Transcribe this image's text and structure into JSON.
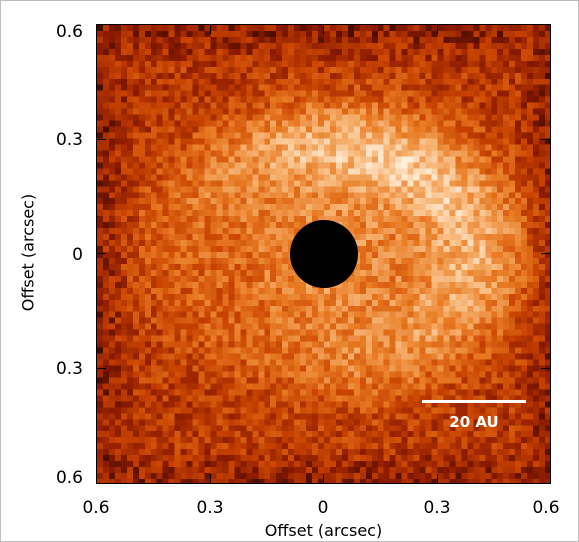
{
  "figure": {
    "xlabel": "Offset (arcsec)",
    "ylabel": "Offset (arcsec)",
    "yticks": [
      "0.6",
      "0.3",
      "0",
      "0.3",
      "0.6"
    ],
    "xticks": [
      "0.6",
      "0.3",
      "0",
      "0.3",
      "0.6"
    ],
    "scalebar_label": "20 AU",
    "colormap": [
      "#000000",
      "#8a1a00",
      "#c84300",
      "#e87a22",
      "#f7b575",
      "#fff2e0"
    ]
  }
}
